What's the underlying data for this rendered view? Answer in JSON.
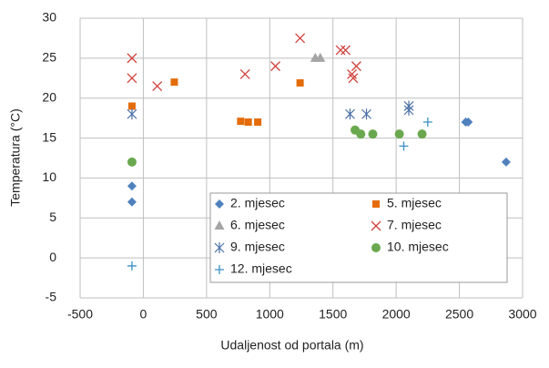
{
  "chart_data": {
    "type": "scatter",
    "x_label": "Udaljenost od portala (m)",
    "y_label": "Temperatura (°C)",
    "xlim": [
      -500,
      3000
    ],
    "xticks": [
      -500,
      0,
      500,
      1000,
      1500,
      2000,
      2500,
      3000
    ],
    "ylim": [
      -5,
      30
    ],
    "yticks": [
      -5,
      0,
      5,
      10,
      15,
      20,
      25,
      30
    ],
    "grid": true,
    "legend": "bottom-right",
    "series": [
      {
        "name": "2. mjesec",
        "color": "#4f81bd",
        "marker": "diamond",
        "x": [
          -90,
          -90,
          2550,
          2570,
          2870
        ],
        "values": [
          9,
          7,
          17,
          17,
          12
        ]
      },
      {
        "name": "5. mjesec",
        "color": "#e46c0a",
        "marker": "square",
        "x": [
          -90,
          245,
          1240,
          770,
          830,
          905
        ],
        "values": [
          19,
          22,
          21.9,
          17.1,
          17,
          17
        ]
      },
      {
        "name": "6. mjesec",
        "color": "#a5a5a5",
        "marker": "triangle",
        "x": [
          1360,
          1400
        ],
        "values": [
          25,
          25
        ]
      },
      {
        "name": "7. mjesec",
        "color": "#d0413c",
        "marker": "cross",
        "x": [
          -90,
          -90,
          110,
          805,
          1045,
          1240,
          1560,
          1600,
          1650,
          1660,
          1685
        ],
        "values": [
          25,
          22.5,
          21.5,
          23,
          24,
          27.5,
          26,
          26,
          23,
          22.5,
          24
        ]
      },
      {
        "name": "9. mjesec",
        "color": "#4a6fa5",
        "marker": "star",
        "x": [
          -90,
          1635,
          1765,
          2100,
          2100
        ],
        "values": [
          18,
          18,
          18,
          19,
          18.5
        ]
      },
      {
        "name": "10. mjesec",
        "color": "#6aa84f",
        "marker": "circle",
        "x": [
          -90,
          1675,
          1720,
          1815,
          2025,
          2205
        ],
        "values": [
          12,
          16,
          15.5,
          15.5,
          15.5,
          15.5
        ]
      },
      {
        "name": "12. mjesec",
        "color": "#3b8fc4",
        "marker": "plus",
        "x": [
          -90,
          2060,
          2250
        ],
        "values": [
          -1,
          14,
          17
        ]
      }
    ]
  }
}
